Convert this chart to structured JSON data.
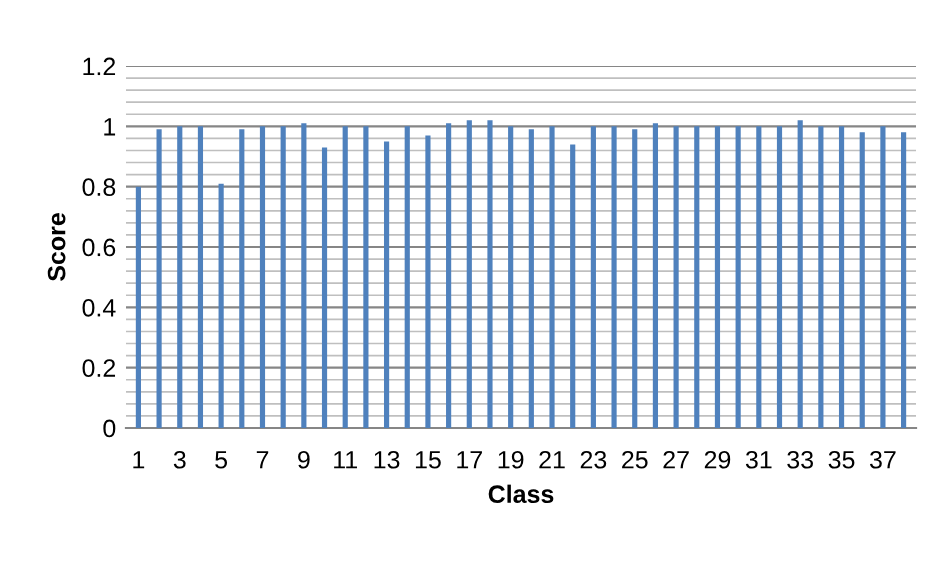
{
  "chart_data": {
    "type": "bar",
    "xlabel": "Class",
    "ylabel": "Score",
    "categories": [
      "1",
      null,
      "3",
      null,
      "5",
      null,
      "7",
      null,
      "9",
      null,
      "11",
      null,
      "13",
      null,
      "15",
      null,
      "17",
      null,
      "19",
      null,
      "21",
      null,
      "23",
      null,
      "25",
      null,
      "27",
      null,
      "29",
      null,
      "31",
      null,
      "33",
      null,
      "35",
      null,
      "37",
      null
    ],
    "values": [
      0.8,
      0.99,
      1.0,
      1.0,
      0.81,
      0.99,
      1.0,
      1.0,
      1.01,
      0.93,
      1.0,
      1.0,
      0.95,
      1.0,
      0.97,
      1.01,
      1.02,
      1.02,
      1.0,
      0.99,
      1.0,
      0.94,
      1.0,
      1.0,
      0.99,
      1.01,
      1.0,
      1.0,
      1.0,
      1.0,
      1.0,
      1.0,
      1.02,
      1.0,
      1.0,
      0.98,
      1.0,
      0.98
    ],
    "color": "#4f81bd",
    "ylim": [
      0,
      1.2
    ],
    "yticks": [
      0,
      0.2,
      0.4,
      0.6,
      0.8,
      1,
      1.2
    ],
    "grid": "y",
    "legend": false
  }
}
